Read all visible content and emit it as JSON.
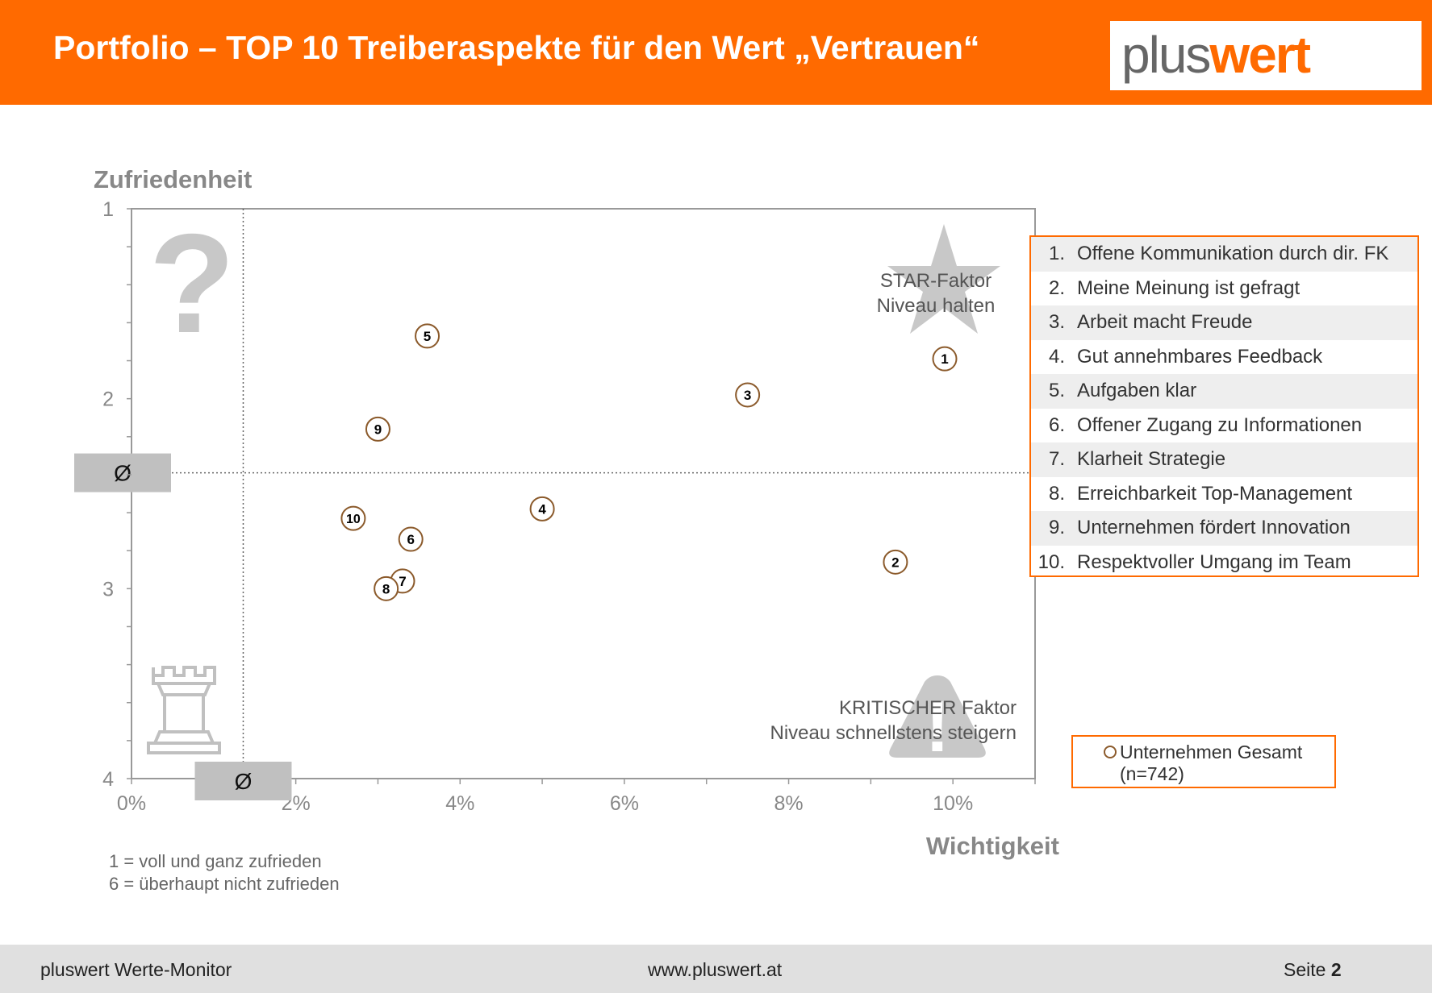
{
  "header": {
    "title": "Portfolio – TOP 10 Treiberaspekte für den Wert „Vertrauen“",
    "logo_plus": "plus",
    "logo_wert": "wert",
    "background_color": "#ff6a00"
  },
  "chart_data": {
    "type": "scatter",
    "ylabel": "Zufriedenheit",
    "xlabel": "Wichtigkeit",
    "xlim": [
      0,
      11
    ],
    "ylim": [
      1,
      4
    ],
    "y_inverted": true,
    "x_ticks": [
      "0%",
      "2%",
      "4%",
      "6%",
      "8%",
      "10%"
    ],
    "x_tick_values": [
      0,
      2,
      4,
      6,
      8,
      10
    ],
    "y_ticks": [
      "1",
      "2",
      "3",
      "4"
    ],
    "y_tick_values": [
      1,
      2,
      3,
      4
    ],
    "avg_symbol": "Ø",
    "avg_x": 1.36,
    "avg_y": 2.39,
    "grid": false,
    "series": [
      {
        "name": "Unternehmen Gesamt",
        "color": "#8b5a2b",
        "points": [
          {
            "label": "1",
            "x": 9.9,
            "y": 1.79
          },
          {
            "label": "2",
            "x": 9.3,
            "y": 2.86
          },
          {
            "label": "3",
            "x": 7.5,
            "y": 1.98
          },
          {
            "label": "4",
            "x": 5.0,
            "y": 2.58
          },
          {
            "label": "5",
            "x": 3.6,
            "y": 1.67
          },
          {
            "label": "6",
            "x": 3.4,
            "y": 2.74
          },
          {
            "label": "7",
            "x": 3.3,
            "y": 2.96
          },
          {
            "label": "8",
            "x": 3.1,
            "y": 3.0
          },
          {
            "label": "9",
            "x": 3.0,
            "y": 2.16
          },
          {
            "label": "10",
            "x": 2.7,
            "y": 2.63
          }
        ]
      }
    ],
    "quadrant_labels": {
      "star_line1": "STAR-Faktor",
      "star_line2": "Niveau halten",
      "critical_line1": "KRITISCHER Faktor",
      "critical_line2": "Niveau schnellstens steigern"
    }
  },
  "legend": {
    "items": [
      {
        "num": "1.",
        "label": "Offene Kommunikation durch dir. FK"
      },
      {
        "num": "2.",
        "label": "Meine Meinung ist gefragt"
      },
      {
        "num": "3.",
        "label": "Arbeit macht Freude"
      },
      {
        "num": "4.",
        "label": "Gut annehmbares Feedback"
      },
      {
        "num": "5.",
        "label": "Aufgaben klar"
      },
      {
        "num": "6.",
        "label": "Offener Zugang zu Informationen"
      },
      {
        "num": "7.",
        "label": "Klarheit Strategie"
      },
      {
        "num": "8.",
        "label": "Erreichbarkeit Top-Management"
      },
      {
        "num": "9.",
        "label": "Unternehmen fördert Innovation"
      },
      {
        "num": "10.",
        "label": "Respektvoller Umgang im Team"
      }
    ],
    "series_label": "Unternehmen Gesamt\n(n=742)"
  },
  "notes": {
    "line1": "1 = voll und ganz zufrieden",
    "line2": "6 = überhaupt nicht zufrieden"
  },
  "footer": {
    "left": "pluswert Werte-Monitor",
    "center": "www.pluswert.at",
    "page_prefix": "Seite",
    "page_number": "2"
  }
}
